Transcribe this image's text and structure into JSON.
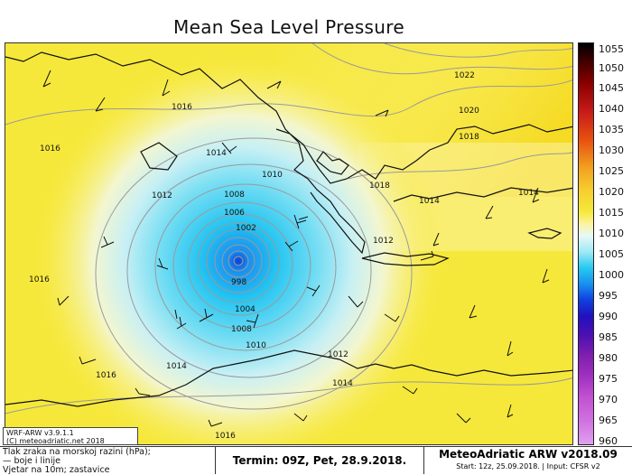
{
  "title": "Mean Sea Level Pressure",
  "colorbar": {
    "ticks": [
      "1055",
      "1050",
      "1045",
      "1040",
      "1035",
      "1030",
      "1025",
      "1020",
      "1015",
      "1010",
      "1005",
      "1000",
      "995",
      "990",
      "985",
      "980",
      "975",
      "970",
      "965",
      "960"
    ]
  },
  "isobar_labels": [
    {
      "text": "1022",
      "id": "a"
    },
    {
      "text": "1020",
      "id": "b"
    },
    {
      "text": "1018",
      "id": "c"
    },
    {
      "text": "1016",
      "id": "d"
    },
    {
      "text": "1016",
      "id": "e"
    },
    {
      "text": "1014",
      "id": "f"
    },
    {
      "text": "1012",
      "id": "g"
    },
    {
      "text": "1010",
      "id": "h"
    },
    {
      "text": "1008",
      "id": "i"
    },
    {
      "text": "1006",
      "id": "j"
    },
    {
      "text": "1002",
      "id": "k"
    },
    {
      "text": "998",
      "id": "l"
    },
    {
      "text": "1004",
      "id": "m"
    },
    {
      "text": "1008",
      "id": "n"
    },
    {
      "text": "1010",
      "id": "o"
    },
    {
      "text": "1012",
      "id": "p"
    },
    {
      "text": "1014",
      "id": "q"
    },
    {
      "text": "1014",
      "id": "r"
    },
    {
      "text": "1016",
      "id": "s"
    },
    {
      "text": "1016",
      "id": "t"
    },
    {
      "text": "1018",
      "id": "u"
    },
    {
      "text": "1014",
      "id": "v"
    },
    {
      "text": "1014",
      "id": "w"
    },
    {
      "text": "1012",
      "id": "x"
    },
    {
      "text": "1016",
      "id": "y"
    }
  ],
  "credit": {
    "line1": "WRF-ARW v3.9.1.1",
    "line2": "(C) meteoadriatic.net 2018"
  },
  "legend": {
    "line1": "Tlak zraka na morskoj razini (hPa);",
    "line2": "— boje i linije",
    "line3": "Vjetar na 10m; zastavice"
  },
  "valid_time": "Termin: 09Z, Pet, 28.9.2018.",
  "brand": "MeteoAdriatic ARW v2018.09",
  "run_info": "Start: 12z, 25.09.2018. | Input: CFSR v2",
  "colors": {
    "yellow": "#f6e83a",
    "yellow_light": "#fbf3a0",
    "cyan": "#27c9f0",
    "blue_center": "#0a55e0"
  }
}
